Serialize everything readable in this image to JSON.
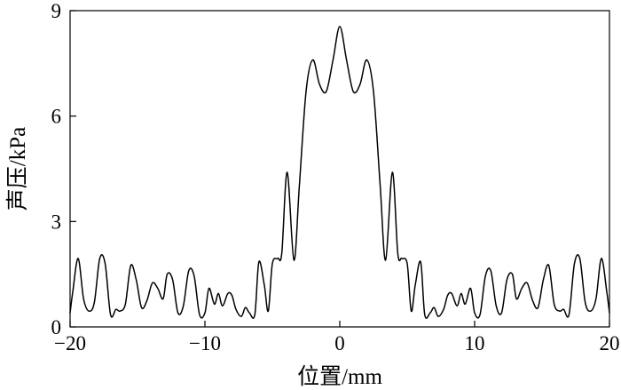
{
  "chart_data": {
    "type": "line",
    "xlabel": "位置/mm",
    "ylabel": "声压/kPa",
    "xlim": [
      -20,
      20
    ],
    "ylim": [
      0,
      9
    ],
    "xticks": [
      -20,
      -10,
      0,
      10,
      20
    ],
    "yticks": [
      0,
      3,
      6,
      9
    ],
    "xtick_labels": [
      "−20",
      "−10",
      "0",
      "10",
      "20"
    ],
    "ytick_labels": [
      "0",
      "3",
      "6",
      "9"
    ],
    "grid": false,
    "legend": "none",
    "series": [
      {
        "color": "#000000",
        "x": [
          0,
          0.5,
          1.0,
          1.5,
          2.0,
          2.5,
          3.0,
          3.4,
          3.9,
          4.3,
          4.6,
          5.0,
          5.3,
          5.6,
          6.0,
          6.3,
          6.7,
          7.0,
          7.3,
          7.7,
          8.0,
          8.3,
          8.7,
          9.0,
          9.3,
          9.7,
          10.0,
          10.4,
          10.8,
          11.2,
          11.6,
          12.0,
          12.4,
          12.8,
          13.1,
          13.5,
          13.9,
          14.3,
          14.7,
          15.1,
          15.5,
          15.9,
          16.3,
          16.6,
          17.0,
          17.4,
          17.8,
          18.2,
          18.6,
          19.0,
          19.4,
          19.8,
          20.0
        ],
        "y": [
          8.55,
          7.6,
          6.7,
          6.9,
          7.6,
          6.7,
          4.0,
          1.9,
          4.4,
          2.1,
          1.95,
          1.8,
          0.45,
          1.2,
          1.85,
          0.35,
          0.4,
          0.55,
          0.3,
          0.5,
          0.9,
          0.95,
          0.6,
          0.95,
          0.65,
          1.1,
          0.4,
          0.35,
          1.45,
          1.6,
          0.6,
          0.4,
          1.35,
          1.5,
          0.8,
          1.1,
          1.25,
          0.75,
          0.55,
          1.35,
          1.75,
          0.65,
          0.45,
          0.5,
          0.35,
          1.8,
          1.95,
          0.7,
          0.45,
          0.8,
          1.95,
          1.0,
          0.4
        ]
      }
    ]
  }
}
